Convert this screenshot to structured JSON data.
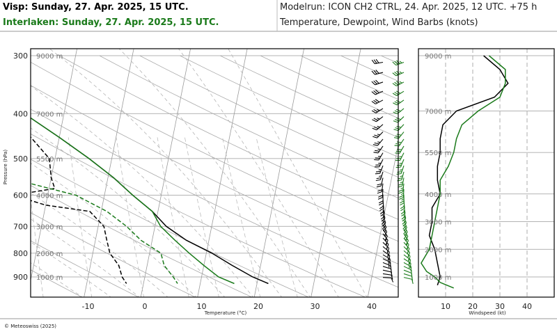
{
  "header": {
    "station1": "Visp: Sunday, 27. Apr. 2025, 15 UTC.",
    "station2": "Interlaken: Sunday, 27. Apr. 2025, 15 UTC.",
    "modelrun": "Modelrun: ICON CH2 CTRL, 24. Apr. 2025, 12 UTC. +75 h",
    "params": "Temperature, Dewpoint, Wind Barbs (knots)"
  },
  "copyright": "© Meteoswiss (2025)",
  "colors": {
    "visp": "#000000",
    "interlaken": "#1a7a1a",
    "grid": "#9a9a9a",
    "background": "#ffffff"
  },
  "chart_data": [
    {
      "type": "line",
      "subtype": "skew-T log-p",
      "xlabel": "Temperature (°C)",
      "ylabel": "Pressure (hPa)",
      "xticks": [
        -10,
        0,
        10,
        20,
        30,
        40
      ],
      "yticks": [
        300,
        400,
        500,
        600,
        700,
        800,
        900
      ],
      "altitude_labels": [
        {
          "label": "9000 m",
          "p": 300
        },
        {
          "label": "7000 m",
          "p": 400
        },
        {
          "label": "5500 m",
          "p": 500
        },
        {
          "label": "4000 m",
          "p": 600
        },
        {
          "label": "3000 m",
          "p": 700
        },
        {
          "label": "2000 m",
          "p": 800
        },
        {
          "label": "1000 m",
          "p": 900
        }
      ],
      "xlim": [
        -25,
        47
      ],
      "ylim": [
        1000,
        290
      ],
      "grid": true,
      "series": [
        {
          "station": "Visp",
          "variable": "temperature",
          "color": "#000000",
          "style": "solid",
          "points": [
            [
              300,
              -42
            ],
            [
              340,
              -36
            ],
            [
              400,
              -27
            ],
            [
              450,
              -20
            ],
            [
              500,
              -14
            ],
            [
              550,
              -9
            ],
            [
              600,
              -5
            ],
            [
              650,
              -1
            ],
            [
              700,
              2
            ],
            [
              750,
              6
            ],
            [
              800,
              11
            ],
            [
              850,
              15
            ],
            [
              900,
              19
            ],
            [
              930,
              22
            ]
          ]
        },
        {
          "station": "Interlaken",
          "variable": "temperature",
          "color": "#1a7a1a",
          "style": "solid",
          "points": [
            [
              300,
              -42
            ],
            [
              340,
              -36
            ],
            [
              400,
              -27
            ],
            [
              450,
              -20
            ],
            [
              500,
              -14
            ],
            [
              550,
              -9
            ],
            [
              600,
              -5
            ],
            [
              650,
              -1
            ],
            [
              700,
              1
            ],
            [
              750,
              4
            ],
            [
              800,
              7
            ],
            [
              850,
              10
            ],
            [
              900,
              13
            ],
            [
              930,
              16
            ]
          ]
        },
        {
          "station": "Visp",
          "variable": "dewpoint",
          "color": "#000000",
          "style": "dashed",
          "points": [
            [
              300,
              -60
            ],
            [
              330,
              -54
            ],
            [
              350,
              -58
            ],
            [
              380,
              -49
            ],
            [
              400,
              -40
            ],
            [
              430,
              -32
            ],
            [
              450,
              -25
            ],
            [
              500,
              -21
            ],
            [
              550,
              -20
            ],
            [
              580,
              -19
            ],
            [
              600,
              -26
            ],
            [
              630,
              -20
            ],
            [
              650,
              -12
            ],
            [
              700,
              -9
            ],
            [
              750,
              -8
            ],
            [
              800,
              -7
            ],
            [
              850,
              -5
            ],
            [
              900,
              -4
            ],
            [
              930,
              -3
            ]
          ]
        },
        {
          "station": "Interlaken",
          "variable": "dewpoint",
          "color": "#1a7a1a",
          "style": "dashed",
          "points": [
            [
              300,
              -62
            ],
            [
              320,
              -58
            ],
            [
              350,
              -57
            ],
            [
              400,
              -39
            ],
            [
              450,
              -27
            ],
            [
              480,
              -36
            ],
            [
              500,
              -43
            ],
            [
              530,
              -40
            ],
            [
              560,
              -25
            ],
            [
              600,
              -15
            ],
            [
              650,
              -9
            ],
            [
              700,
              -5
            ],
            [
              750,
              -2
            ],
            [
              800,
              2
            ],
            [
              850,
              3
            ],
            [
              900,
              5
            ],
            [
              930,
              6
            ]
          ]
        }
      ]
    },
    {
      "type": "line",
      "subtype": "wind speed profile",
      "xlabel": "Windspeed (kt)",
      "xticks": [
        10,
        20,
        30,
        40
      ],
      "xlim": [
        0,
        50
      ],
      "altitude_ticks": [
        "9000 m",
        "7000 m",
        "5500 m",
        "4000 m",
        "3000 m",
        "2000 m",
        "1000 m"
      ],
      "grid": true,
      "series": [
        {
          "station": "Visp",
          "color": "#000000",
          "points": [
            [
              9000,
              24
            ],
            [
              8500,
              30
            ],
            [
              8000,
              33
            ],
            [
              7500,
              28
            ],
            [
              7000,
              14
            ],
            [
              6500,
              9
            ],
            [
              6000,
              8
            ],
            [
              5500,
              8
            ],
            [
              5000,
              7
            ],
            [
              4500,
              7
            ],
            [
              4000,
              8
            ],
            [
              3500,
              5
            ],
            [
              3000,
              5
            ],
            [
              2500,
              4
            ],
            [
              2000,
              6
            ],
            [
              1500,
              7
            ],
            [
              1000,
              8
            ],
            [
              700,
              7
            ]
          ]
        },
        {
          "station": "Interlaken",
          "color": "#1a7a1a",
          "points": [
            [
              9000,
              26
            ],
            [
              8500,
              32
            ],
            [
              8000,
              32
            ],
            [
              7500,
              30
            ],
            [
              7000,
              22
            ],
            [
              6500,
              16
            ],
            [
              6000,
              14
            ],
            [
              5500,
              13
            ],
            [
              5000,
              11
            ],
            [
              4500,
              8
            ],
            [
              4000,
              8
            ],
            [
              3500,
              7
            ],
            [
              3000,
              6
            ],
            [
              2500,
              5
            ],
            [
              2000,
              4
            ],
            [
              1500,
              1
            ],
            [
              1200,
              3
            ],
            [
              1000,
              6
            ],
            [
              800,
              8
            ],
            [
              600,
              13
            ]
          ]
        }
      ]
    }
  ]
}
